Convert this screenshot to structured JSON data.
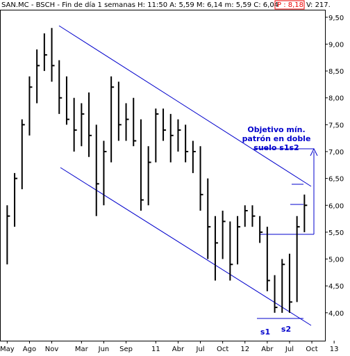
{
  "chart_data": {
    "type": "ohlc",
    "title": "SAN.MC - BSCH - Fin de día 1 semanas H: 11:50 A: 5,59 M: 6,14 m: 5,59 C: 6,04",
    "title_highlight": "P : 8,18",
    "title_tail": "V: 217.",
    "annotation": [
      "Objetivo mín.",
      "patrón en doble",
      "suelo s1s2"
    ],
    "bottom_labels": [
      "s1",
      "s2"
    ],
    "categories": [
      "May",
      null,
      null,
      "Ago",
      null,
      null,
      "Nov",
      null,
      null,
      null,
      "Mar",
      null,
      null,
      "Jun",
      null,
      null,
      "Sep",
      null,
      null,
      null,
      "11",
      null,
      null,
      "Abr",
      null,
      null,
      "Jul",
      null,
      null,
      "Oct",
      null,
      null,
      "12",
      null,
      null,
      "Abr",
      null,
      null,
      "Jul",
      null,
      null,
      "Oct",
      null,
      null,
      "13"
    ],
    "high": [
      6.0,
      6.6,
      7.6,
      8.4,
      8.9,
      9.2,
      9.3,
      8.7,
      8.4,
      8.0,
      7.9,
      8.1,
      7.5,
      7.2,
      8.4,
      8.3,
      7.9,
      8.0,
      7.6,
      7.1,
      7.8,
      7.8,
      7.7,
      7.6,
      7.5,
      7.2,
      7.1,
      6.5,
      5.8,
      5.9,
      5.7,
      5.8,
      6.0,
      6.0,
      5.8,
      5.6,
      4.7,
      5.0,
      5.1,
      5.8,
      6.2,
      null,
      null,
      null,
      null
    ],
    "low": [
      4.9,
      5.6,
      6.3,
      7.3,
      7.9,
      8.5,
      8.3,
      7.7,
      7.5,
      7.0,
      7.1,
      6.9,
      5.8,
      6.0,
      6.8,
      7.2,
      7.2,
      7.1,
      5.9,
      6.0,
      6.8,
      7.2,
      6.8,
      7.0,
      6.8,
      6.6,
      5.9,
      5.0,
      4.6,
      5.0,
      4.6,
      4.9,
      5.6,
      5.6,
      5.3,
      4.4,
      4.0,
      4.0,
      4.0,
      4.2,
      5.5,
      null,
      null,
      null,
      null
    ],
    "close": [
      5.8,
      6.5,
      7.5,
      8.2,
      8.6,
      8.8,
      8.6,
      8.0,
      7.6,
      7.4,
      7.7,
      7.3,
      6.4,
      7.0,
      8.2,
      7.5,
      7.6,
      7.2,
      6.1,
      6.8,
      7.7,
      7.4,
      7.3,
      7.4,
      7.0,
      7.0,
      6.2,
      5.6,
      5.3,
      5.7,
      4.9,
      5.6,
      5.9,
      5.8,
      5.5,
      4.6,
      4.1,
      4.9,
      4.2,
      5.6,
      6.0,
      null,
      null,
      null,
      null
    ],
    "color": "#000000",
    "ylim": [
      3.48,
      9.64
    ],
    "yticks": [
      {
        "value": 4.0,
        "label": "4,00"
      },
      {
        "value": 4.5,
        "label": "4,50"
      },
      {
        "value": 5.0,
        "label": "5,00"
      },
      {
        "value": 5.5,
        "label": "5,50"
      },
      {
        "value": 6.0,
        "label": "6,00"
      },
      {
        "value": 6.5,
        "label": "6,50"
      },
      {
        "value": 7.0,
        "label": "7,00"
      },
      {
        "value": 7.5,
        "label": "7,50"
      },
      {
        "value": 8.0,
        "label": "8,00"
      },
      {
        "value": 8.5,
        "label": "8,50"
      },
      {
        "value": 9.0,
        "label": "9,00"
      },
      {
        "value": 9.5,
        "label": "9,50"
      }
    ],
    "grid": false
  }
}
